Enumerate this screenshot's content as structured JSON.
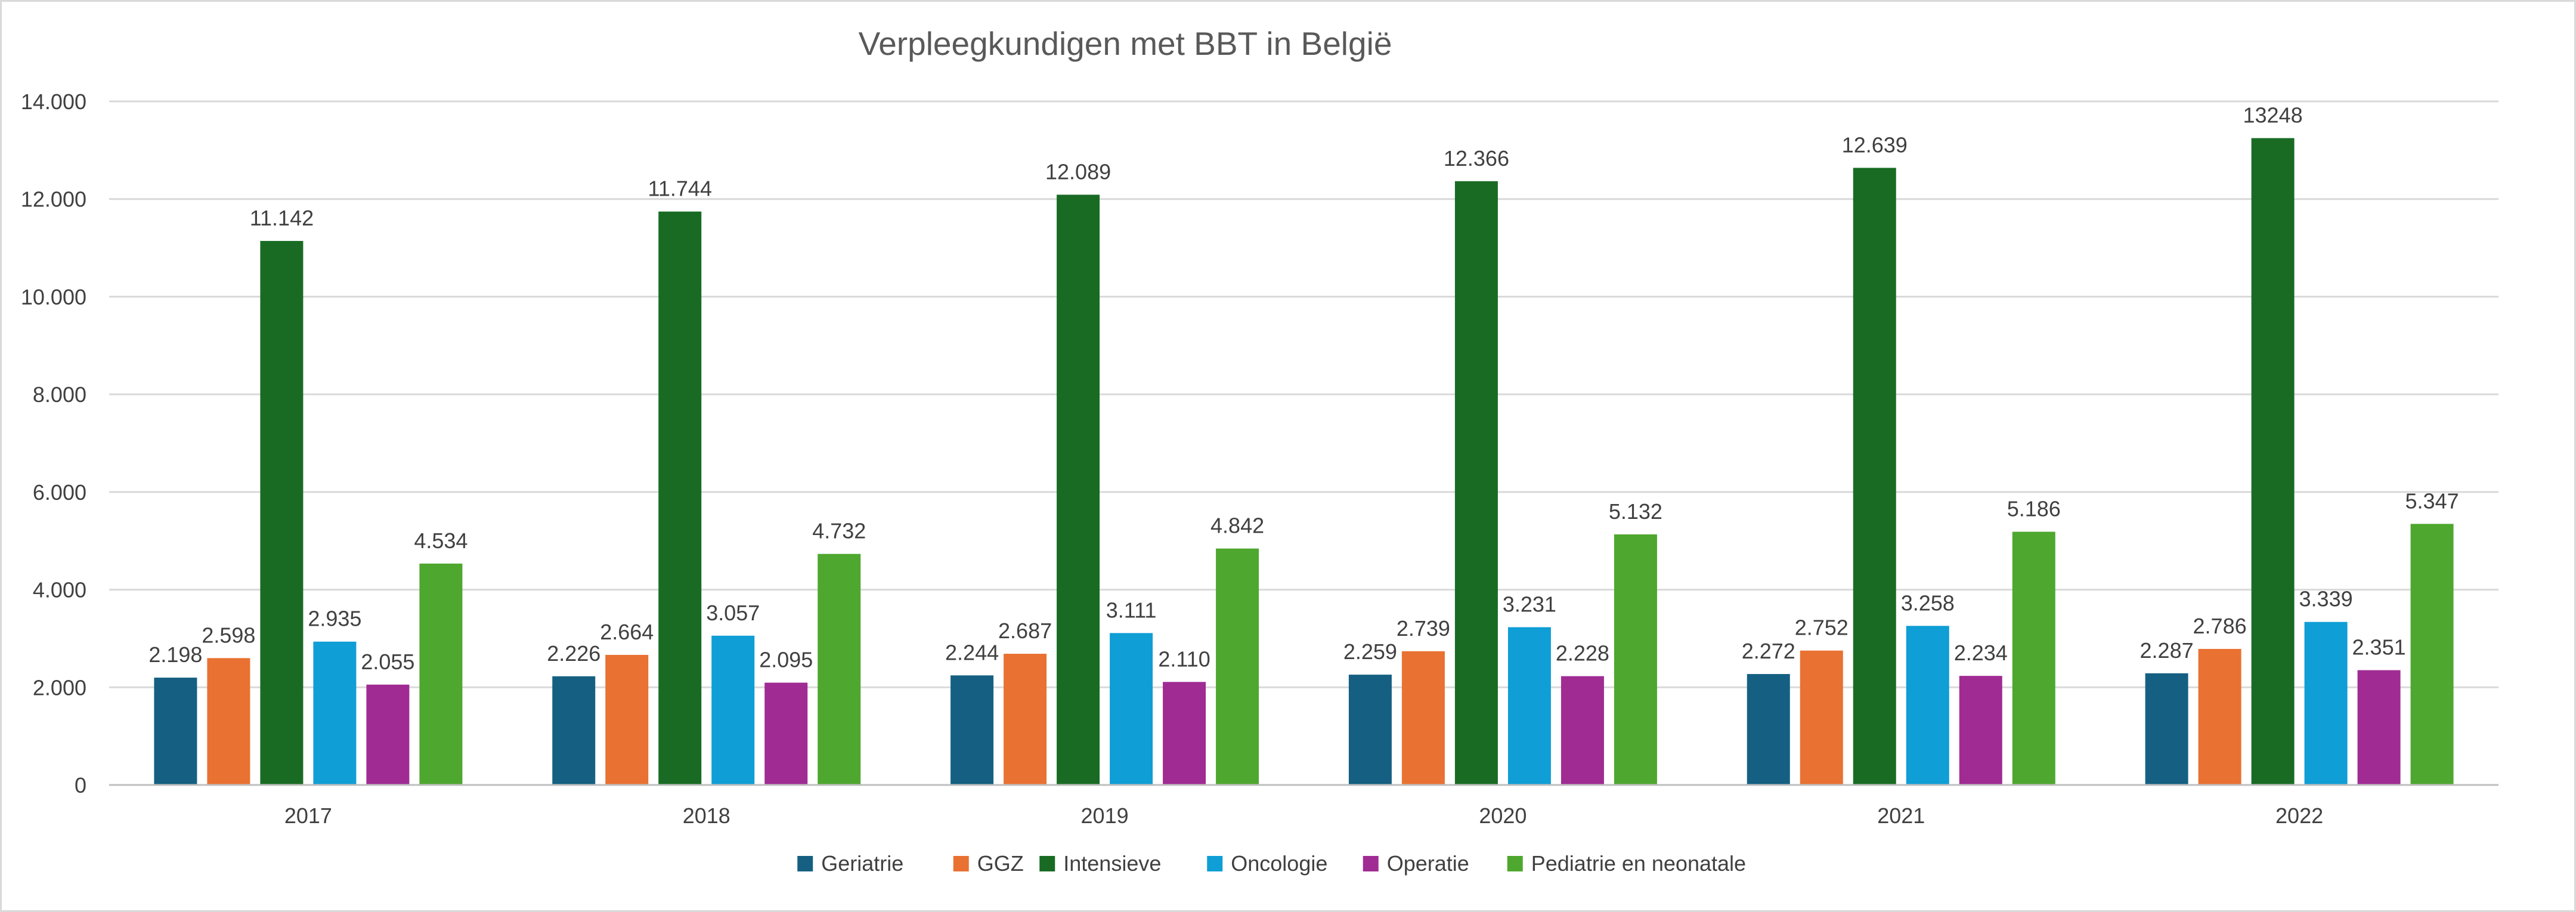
{
  "chart_data": {
    "type": "bar",
    "title": "Verpleegkundigen met BBT in België",
    "xlabel": "",
    "ylabel": "",
    "categories": [
      "2017",
      "2018",
      "2019",
      "2020",
      "2021",
      "2022"
    ],
    "ylim": [
      0,
      14000
    ],
    "yticks": [
      0,
      2000,
      4000,
      6000,
      8000,
      10000,
      12000,
      14000
    ],
    "ytick_labels": [
      "0",
      "2.000",
      "4.000",
      "6.000",
      "8.000",
      "10.000",
      "12.000",
      "14.000"
    ],
    "grid": true,
    "legend_position": "bottom",
    "series": [
      {
        "name": "Geriatrie",
        "color": "#156082",
        "values": [
          2198,
          2226,
          2244,
          2259,
          2272,
          2287
        ],
        "labels": [
          "2.198",
          "2.226",
          "2.244",
          "2.259",
          "2.272",
          "2.287"
        ]
      },
      {
        "name": "GGZ",
        "color": "#E97132",
        "values": [
          2598,
          2664,
          2687,
          2739,
          2752,
          2786
        ],
        "labels": [
          "2.598",
          "2.664",
          "2.687",
          "2.739",
          "2.752",
          "2.786"
        ]
      },
      {
        "name": "Intensieve",
        "color": "#196B24",
        "values": [
          11142,
          11744,
          12089,
          12366,
          12639,
          13248
        ],
        "labels": [
          "11.142",
          "11.744",
          "12.089",
          "12.366",
          "12.639",
          "13248"
        ]
      },
      {
        "name": "Oncologie",
        "color": "#0F9ED5",
        "values": [
          2935,
          3057,
          3111,
          3231,
          3258,
          3339
        ],
        "labels": [
          "2.935",
          "3.057",
          "3.111",
          "3.231",
          "3.258",
          "3.339"
        ]
      },
      {
        "name": "Operatie",
        "color": "#A02B93",
        "values": [
          2055,
          2095,
          2110,
          2228,
          2234,
          2351
        ],
        "labels": [
          "2.055",
          "2.095",
          "2.110",
          "2.228",
          "2.234",
          "2.351"
        ]
      },
      {
        "name": "Pediatrie en neonatale",
        "color": "#4EA72E",
        "values": [
          4534,
          4732,
          4842,
          5132,
          5186,
          5347
        ],
        "labels": [
          "4.534",
          "4.732",
          "4.842",
          "5.132",
          "5.186",
          "5.347"
        ]
      }
    ]
  }
}
